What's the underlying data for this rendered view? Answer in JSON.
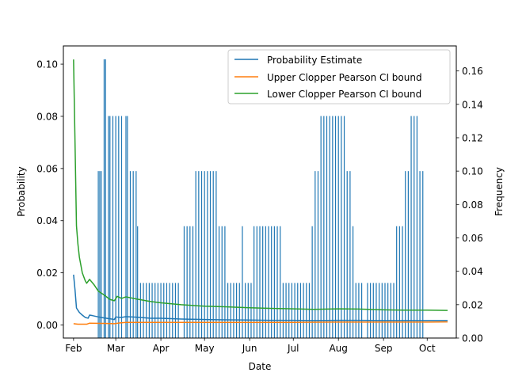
{
  "chart_data": {
    "type": "line",
    "xlabel": "Date",
    "ylabel": "Probability",
    "y2label": "Frequency",
    "xlim": [
      "2024-01-25",
      "2024-10-21"
    ],
    "ylim": [
      -0.005,
      0.107
    ],
    "y2lim": [
      0.0,
      0.175
    ],
    "x_ticks": [
      {
        "date": "2024-02-01",
        "label": "Feb"
      },
      {
        "date": "2024-03-01",
        "label": "Mar"
      },
      {
        "date": "2024-04-01",
        "label": "Apr"
      },
      {
        "date": "2024-05-01",
        "label": "May"
      },
      {
        "date": "2024-06-01",
        "label": "Jun"
      },
      {
        "date": "2024-07-01",
        "label": "Jul"
      },
      {
        "date": "2024-08-01",
        "label": "Aug"
      },
      {
        "date": "2024-09-01",
        "label": "Sep"
      },
      {
        "date": "2024-10-01",
        "label": "Oct"
      }
    ],
    "y_ticks": [
      "0.00",
      "0.02",
      "0.04",
      "0.06",
      "0.08",
      "0.10"
    ],
    "y2_ticks": [
      "0.00",
      "0.02",
      "0.04",
      "0.06",
      "0.08",
      "0.10",
      "0.12",
      "0.14",
      "0.16"
    ],
    "legend_position": "top-right",
    "series": [
      {
        "name": "Probability Estimate",
        "color": "#1f77b4",
        "axis": "left",
        "points": [
          [
            "2024-02-01",
            0.0193
          ],
          [
            "2024-02-02",
            0.0135
          ],
          [
            "2024-02-03",
            0.0065
          ],
          [
            "2024-02-05",
            0.0048
          ],
          [
            "2024-02-07",
            0.0038
          ],
          [
            "2024-02-09",
            0.0029
          ],
          [
            "2024-02-11",
            0.0026
          ],
          [
            "2024-02-12",
            0.0038
          ],
          [
            "2024-02-14",
            0.0036
          ],
          [
            "2024-02-18",
            0.0031
          ],
          [
            "2024-02-22",
            0.0027
          ],
          [
            "2024-02-26",
            0.0024
          ],
          [
            "2024-02-29",
            0.0021
          ],
          [
            "2024-03-01",
            0.0031
          ],
          [
            "2024-03-04",
            0.0029
          ],
          [
            "2024-03-06",
            0.003
          ],
          [
            "2024-03-08",
            0.0032
          ],
          [
            "2024-03-15",
            0.003
          ],
          [
            "2024-03-25",
            0.0026
          ],
          [
            "2024-04-01",
            0.0026
          ],
          [
            "2024-04-15",
            0.0023
          ],
          [
            "2024-05-01",
            0.0021
          ],
          [
            "2024-05-15",
            0.002
          ],
          [
            "2024-06-01",
            0.0019
          ],
          [
            "2024-06-15",
            0.0018
          ],
          [
            "2024-07-01",
            0.0018
          ],
          [
            "2024-07-15",
            0.0017
          ],
          [
            "2024-08-01",
            0.0018
          ],
          [
            "2024-08-15",
            0.0018
          ],
          [
            "2024-09-01",
            0.0017
          ],
          [
            "2024-09-15",
            0.0017
          ],
          [
            "2024-10-01",
            0.0017
          ],
          [
            "2024-10-15",
            0.0017
          ]
        ]
      },
      {
        "name": "Upper Clopper Pearson CI bound",
        "color": "#ff7f0e",
        "axis": "left",
        "points": [
          [
            "2024-02-01",
            0.0005
          ],
          [
            "2024-02-04",
            0.0003
          ],
          [
            "2024-02-10",
            0.0003
          ],
          [
            "2024-02-12",
            0.0007
          ],
          [
            "2024-02-22",
            0.0006
          ],
          [
            "2024-02-29",
            0.0005
          ],
          [
            "2024-03-04",
            0.0008
          ],
          [
            "2024-03-08",
            0.001
          ],
          [
            "2024-03-20",
            0.001
          ],
          [
            "2024-04-01",
            0.001
          ],
          [
            "2024-05-01",
            0.001
          ],
          [
            "2024-06-01",
            0.001
          ],
          [
            "2024-07-01",
            0.001
          ],
          [
            "2024-08-01",
            0.0011
          ],
          [
            "2024-09-01",
            0.0011
          ],
          [
            "2024-10-01",
            0.0011
          ],
          [
            "2024-10-15",
            0.0012
          ]
        ]
      },
      {
        "name": "Lower Clopper Pearson CI bound",
        "color": "#2ca02c",
        "axis": "left",
        "points": [
          [
            "2024-02-01",
            0.1018
          ],
          [
            "2024-02-02",
            0.07
          ],
          [
            "2024-02-03",
            0.038
          ],
          [
            "2024-02-04",
            0.031
          ],
          [
            "2024-02-05",
            0.026
          ],
          [
            "2024-02-07",
            0.02
          ],
          [
            "2024-02-09",
            0.017
          ],
          [
            "2024-02-10",
            0.016
          ],
          [
            "2024-02-12",
            0.0175
          ],
          [
            "2024-02-15",
            0.0155
          ],
          [
            "2024-02-18",
            0.013
          ],
          [
            "2024-02-22",
            0.0115
          ],
          [
            "2024-02-26",
            0.0098
          ],
          [
            "2024-02-29",
            0.0093
          ],
          [
            "2024-03-02",
            0.011
          ],
          [
            "2024-03-05",
            0.0102
          ],
          [
            "2024-03-08",
            0.0108
          ],
          [
            "2024-03-15",
            0.01
          ],
          [
            "2024-03-25",
            0.009
          ],
          [
            "2024-04-01",
            0.0085
          ],
          [
            "2024-04-15",
            0.0078
          ],
          [
            "2024-05-01",
            0.0072
          ],
          [
            "2024-05-15",
            0.007
          ],
          [
            "2024-06-01",
            0.0066
          ],
          [
            "2024-06-15",
            0.0064
          ],
          [
            "2024-07-01",
            0.0062
          ],
          [
            "2024-07-15",
            0.006
          ],
          [
            "2024-08-01",
            0.0062
          ],
          [
            "2024-08-15",
            0.0061
          ],
          [
            "2024-09-01",
            0.0058
          ],
          [
            "2024-09-15",
            0.0057
          ],
          [
            "2024-10-01",
            0.0057
          ],
          [
            "2024-10-15",
            0.0056
          ]
        ]
      }
    ],
    "histogram": {
      "name": "Frequency",
      "axis": "right",
      "color": "#1f77b4",
      "bars": [
        [
          "2024-02-18",
          0.1
        ],
        [
          "2024-02-19",
          0.1
        ],
        [
          "2024-02-20",
          0.1
        ],
        [
          "2024-02-22",
          0.167
        ],
        [
          "2024-02-23",
          0.167
        ],
        [
          "2024-02-25",
          0.133
        ],
        [
          "2024-02-26",
          0.133
        ],
        [
          "2024-02-28",
          0.133
        ],
        [
          "2024-03-01",
          0.133
        ],
        [
          "2024-03-03",
          0.133
        ],
        [
          "2024-03-05",
          0.133
        ],
        [
          "2024-03-08",
          0.133
        ],
        [
          "2024-03-09",
          0.133
        ],
        [
          "2024-03-11",
          0.1
        ],
        [
          "2024-03-13",
          0.1
        ],
        [
          "2024-03-15",
          0.1
        ],
        [
          "2024-03-16",
          0.067
        ],
        [
          "2024-03-18",
          0.033
        ],
        [
          "2024-03-20",
          0.033
        ],
        [
          "2024-03-22",
          0.033
        ],
        [
          "2024-03-24",
          0.033
        ],
        [
          "2024-03-26",
          0.033
        ],
        [
          "2024-03-28",
          0.033
        ],
        [
          "2024-03-30",
          0.033
        ],
        [
          "2024-04-01",
          0.033
        ],
        [
          "2024-04-03",
          0.033
        ],
        [
          "2024-04-05",
          0.033
        ],
        [
          "2024-04-07",
          0.033
        ],
        [
          "2024-04-09",
          0.033
        ],
        [
          "2024-04-11",
          0.033
        ],
        [
          "2024-04-13",
          0.033
        ],
        [
          "2024-04-17",
          0.067
        ],
        [
          "2024-04-19",
          0.067
        ],
        [
          "2024-04-21",
          0.067
        ],
        [
          "2024-04-23",
          0.067
        ],
        [
          "2024-04-25",
          0.1
        ],
        [
          "2024-04-27",
          0.1
        ],
        [
          "2024-04-29",
          0.1
        ],
        [
          "2024-05-01",
          0.1
        ],
        [
          "2024-05-03",
          0.1
        ],
        [
          "2024-05-05",
          0.1
        ],
        [
          "2024-05-07",
          0.1
        ],
        [
          "2024-05-09",
          0.1
        ],
        [
          "2024-05-11",
          0.067
        ],
        [
          "2024-05-13",
          0.067
        ],
        [
          "2024-05-15",
          0.067
        ],
        [
          "2024-05-17",
          0.033
        ],
        [
          "2024-05-19",
          0.033
        ],
        [
          "2024-05-21",
          0.033
        ],
        [
          "2024-05-23",
          0.033
        ],
        [
          "2024-05-25",
          0.033
        ],
        [
          "2024-05-27",
          0.067
        ],
        [
          "2024-05-29",
          0.033
        ],
        [
          "2024-05-31",
          0.033
        ],
        [
          "2024-06-02",
          0.033
        ],
        [
          "2024-06-04",
          0.067
        ],
        [
          "2024-06-06",
          0.067
        ],
        [
          "2024-06-08",
          0.067
        ],
        [
          "2024-06-10",
          0.067
        ],
        [
          "2024-06-12",
          0.067
        ],
        [
          "2024-06-14",
          0.067
        ],
        [
          "2024-06-16",
          0.067
        ],
        [
          "2024-06-18",
          0.067
        ],
        [
          "2024-06-20",
          0.067
        ],
        [
          "2024-06-22",
          0.067
        ],
        [
          "2024-06-24",
          0.033
        ],
        [
          "2024-06-26",
          0.033
        ],
        [
          "2024-06-28",
          0.033
        ],
        [
          "2024-06-30",
          0.033
        ],
        [
          "2024-07-02",
          0.033
        ],
        [
          "2024-07-04",
          0.033
        ],
        [
          "2024-07-06",
          0.033
        ],
        [
          "2024-07-08",
          0.033
        ],
        [
          "2024-07-10",
          0.033
        ],
        [
          "2024-07-12",
          0.033
        ],
        [
          "2024-07-14",
          0.067
        ],
        [
          "2024-07-16",
          0.1
        ],
        [
          "2024-07-18",
          0.1
        ],
        [
          "2024-07-20",
          0.133
        ],
        [
          "2024-07-22",
          0.133
        ],
        [
          "2024-07-24",
          0.133
        ],
        [
          "2024-07-26",
          0.133
        ],
        [
          "2024-07-28",
          0.133
        ],
        [
          "2024-07-30",
          0.133
        ],
        [
          "2024-08-01",
          0.133
        ],
        [
          "2024-08-03",
          0.133
        ],
        [
          "2024-08-05",
          0.133
        ],
        [
          "2024-08-07",
          0.1
        ],
        [
          "2024-08-09",
          0.1
        ],
        [
          "2024-08-11",
          0.067
        ],
        [
          "2024-08-13",
          0.033
        ],
        [
          "2024-08-15",
          0.033
        ],
        [
          "2024-08-17",
          0.033
        ],
        [
          "2024-08-21",
          0.033
        ],
        [
          "2024-08-23",
          0.033
        ],
        [
          "2024-08-25",
          0.033
        ],
        [
          "2024-08-27",
          0.033
        ],
        [
          "2024-08-29",
          0.033
        ],
        [
          "2024-08-31",
          0.033
        ],
        [
          "2024-09-02",
          0.033
        ],
        [
          "2024-09-04",
          0.033
        ],
        [
          "2024-09-06",
          0.033
        ],
        [
          "2024-09-08",
          0.033
        ],
        [
          "2024-09-10",
          0.067
        ],
        [
          "2024-09-12",
          0.067
        ],
        [
          "2024-09-14",
          0.067
        ],
        [
          "2024-09-16",
          0.1
        ],
        [
          "2024-09-18",
          0.1
        ],
        [
          "2024-09-20",
          0.133
        ],
        [
          "2024-09-22",
          0.133
        ],
        [
          "2024-09-24",
          0.133
        ],
        [
          "2024-09-26",
          0.1
        ],
        [
          "2024-09-28",
          0.1
        ]
      ]
    }
  }
}
